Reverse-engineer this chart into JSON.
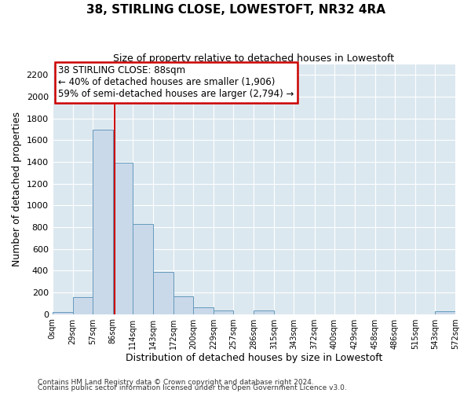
{
  "title": "38, STIRLING CLOSE, LOWESTOFT, NR32 4RA",
  "subtitle": "Size of property relative to detached houses in Lowestoft",
  "xlabel": "Distribution of detached houses by size in Lowestoft",
  "ylabel": "Number of detached properties",
  "bin_edges": [
    0,
    29,
    57,
    86,
    114,
    143,
    172,
    200,
    229,
    257,
    286,
    315,
    343,
    372,
    400,
    429,
    458,
    486,
    515,
    543,
    572
  ],
  "bin_counts": [
    20,
    155,
    1700,
    1395,
    830,
    385,
    165,
    65,
    30,
    0,
    30,
    0,
    0,
    0,
    0,
    0,
    0,
    0,
    0,
    25
  ],
  "bar_color": "#c9d9ea",
  "bar_edge_color": "#6699bb",
  "property_size": 88,
  "vline_color": "#cc0000",
  "annotation_line1": "38 STIRLING CLOSE: 88sqm",
  "annotation_line2": "← 40% of detached houses are smaller (1,906)",
  "annotation_line3": "59% of semi-detached houses are larger (2,794) →",
  "annotation_box_color": "#ffffff",
  "annotation_box_edge_color": "#cc0000",
  "ylim": [
    0,
    2300
  ],
  "yticks": [
    0,
    200,
    400,
    600,
    800,
    1000,
    1200,
    1400,
    1600,
    1800,
    2000,
    2200
  ],
  "bg_color": "#dce8f0",
  "grid_color": "#ffffff",
  "footnote1": "Contains HM Land Registry data © Crown copyright and database right 2024.",
  "footnote2": "Contains public sector information licensed under the Open Government Licence v3.0."
}
